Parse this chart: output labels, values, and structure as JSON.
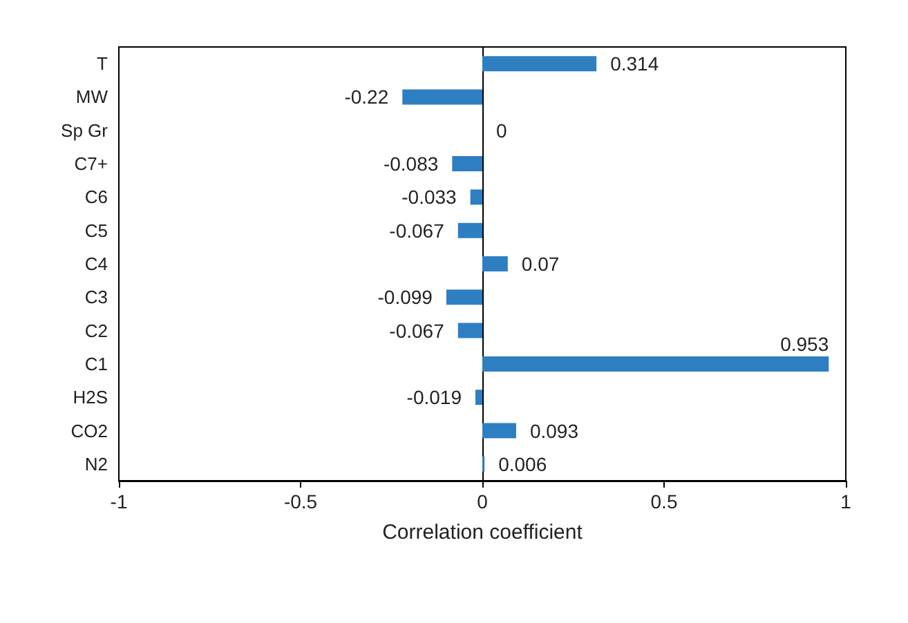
{
  "chart_data": {
    "type": "bar",
    "orientation": "horizontal",
    "xlabel": "Correlation coefficient",
    "categories": [
      "T",
      "MW",
      "Sp Gr",
      "C7+",
      "C6",
      "C5",
      "C4",
      "C3",
      "C2",
      "C1",
      "H2S",
      "CO2",
      "N2"
    ],
    "values": [
      0.314,
      -0.22,
      0,
      -0.083,
      -0.033,
      -0.067,
      0.07,
      -0.099,
      -0.067,
      0.953,
      -0.019,
      0.093,
      0.006
    ],
    "color": "#2e7fc1",
    "xlim": [
      -1,
      1
    ],
    "xticks": [
      -1,
      -0.5,
      0,
      0.5,
      1
    ],
    "data_labels": true
  }
}
